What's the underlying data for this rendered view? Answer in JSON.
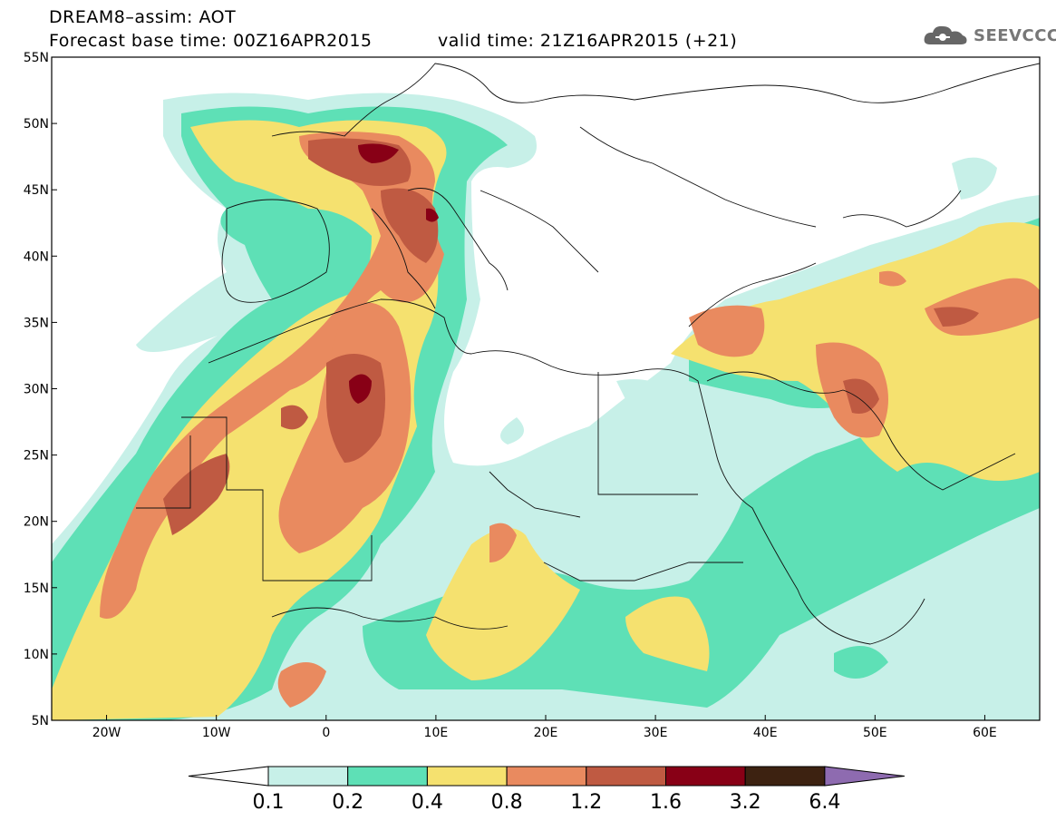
{
  "header": {
    "title": "DREAM8–assim: AOT",
    "base_time": "Forecast base time: 00Z16APR2015",
    "valid_time": "valid time: 21Z16APR2015 (+21)"
  },
  "logo": {
    "text": "SEEVCCC",
    "icon": "cloud-icon"
  },
  "map": {
    "lon_range": [
      -25,
      65
    ],
    "lat_range": [
      5,
      55
    ],
    "lat_labels": [
      "55N",
      "50N",
      "45N",
      "40N",
      "35N",
      "30N",
      "25N",
      "20N",
      "15N",
      "10N",
      "5N"
    ],
    "lon_labels": [
      "20W",
      "10W",
      "0",
      "10E",
      "20E",
      "30E",
      "40E",
      "50E",
      "60E"
    ]
  },
  "colorbar": {
    "labels": [
      "0.1",
      "0.2",
      "0.4",
      "0.8",
      "1.2",
      "1.6",
      "3.2",
      "6.4"
    ],
    "colors": [
      "#c7f0e8",
      "#5ee0b6",
      "#f5e16f",
      "#e98a5f",
      "#bf5a42",
      "#880016",
      "#3d2211",
      "#8e6bb0"
    ]
  }
}
